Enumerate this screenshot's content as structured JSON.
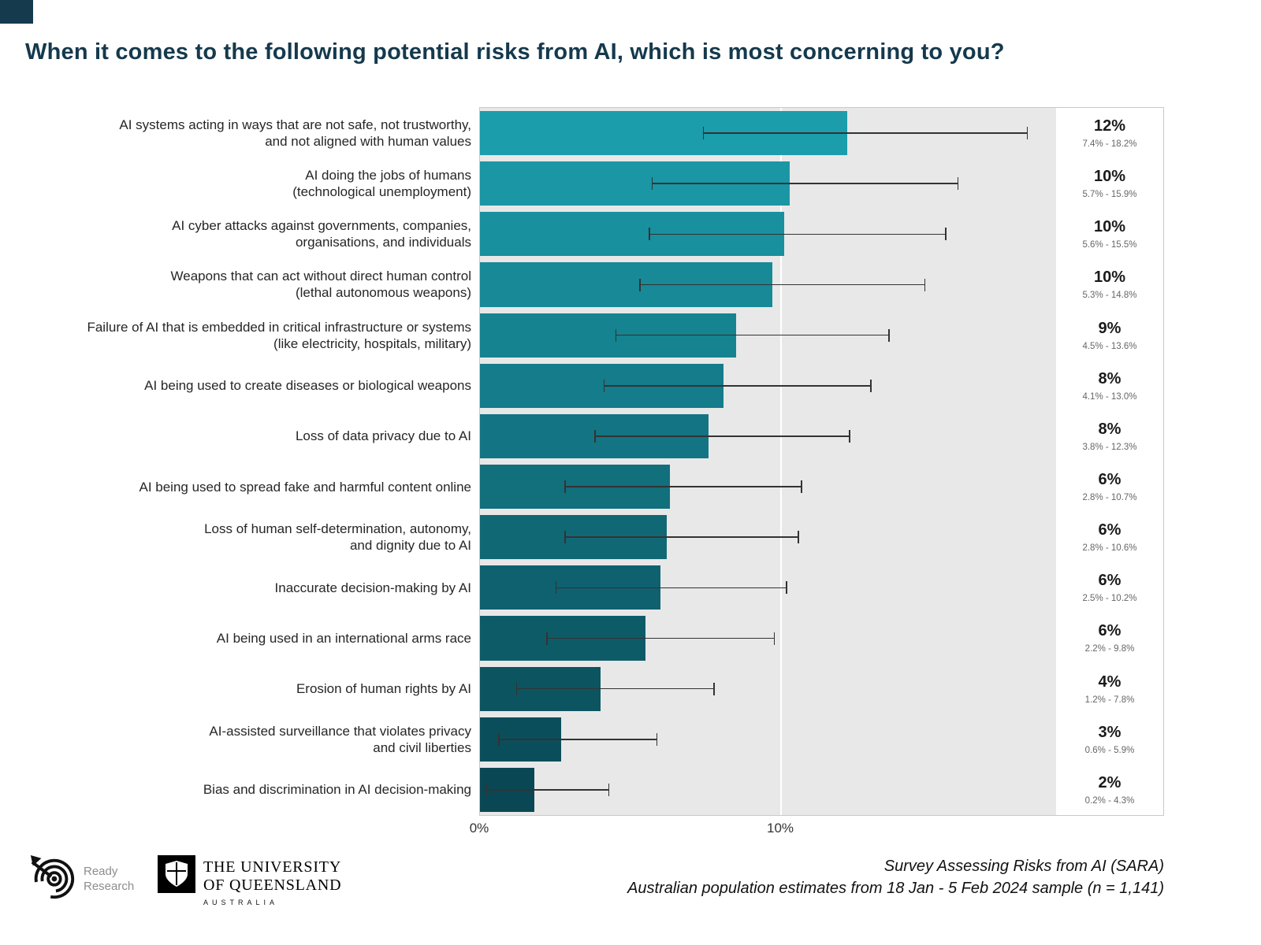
{
  "chart_data": {
    "type": "bar",
    "orientation": "horizontal",
    "title": "When it comes to the following potential risks from AI, which is most concerning to you?",
    "xlabel": "",
    "ylabel": "",
    "xlim": [
      0,
      19.1
    ],
    "x_ticks": [
      "0%",
      "10%"
    ],
    "x_tick_pcts": [
      0,
      10
    ],
    "grid": "white vertical gridline at 10%",
    "plot_background": "#e8e8e8",
    "rows": [
      {
        "label": "AI systems acting in ways that are not safe, not trustworthy,\nand not aligned with human values",
        "value": 12.2,
        "display": "12%",
        "ci_text": "7.4% - 18.2%",
        "ci_low": 7.4,
        "ci_high": 18.2,
        "color": "#1B9DAB"
      },
      {
        "label": "AI doing the jobs of humans\n(technological unemployment)",
        "value": 10.3,
        "display": "10%",
        "ci_text": "5.7% - 15.9%",
        "ci_low": 5.7,
        "ci_high": 15.9,
        "color": "#1A96A4"
      },
      {
        "label": "AI cyber attacks against governments, companies,\norganisations, and individuals",
        "value": 10.1,
        "display": "10%",
        "ci_text": "5.6% - 15.5%",
        "ci_low": 5.6,
        "ci_high": 15.5,
        "color": "#18909E"
      },
      {
        "label": "Weapons that can act without direct human control\n(lethal autonomous weapons)",
        "value": 9.7,
        "display": "10%",
        "ci_text": "5.3% - 14.8%",
        "ci_low": 5.3,
        "ci_high": 14.8,
        "color": "#178997"
      },
      {
        "label": "Failure of AI that is embedded in critical infrastructure or systems\n(like electricity, hospitals, military)",
        "value": 8.5,
        "display": "9%",
        "ci_text": "4.5% - 13.6%",
        "ci_low": 4.5,
        "ci_high": 13.6,
        "color": "#168390"
      },
      {
        "label": "AI being used to create diseases or biological weapons",
        "value": 8.1,
        "display": "8%",
        "ci_text": "4.1% - 13.0%",
        "ci_low": 4.1,
        "ci_high": 13.0,
        "color": "#147C8A"
      },
      {
        "label": "Loss of data privacy due to AI",
        "value": 7.6,
        "display": "8%",
        "ci_text": "3.8% - 12.3%",
        "ci_low": 3.8,
        "ci_high": 12.3,
        "color": "#137583"
      },
      {
        "label": "AI being used to spread fake and harmful content online",
        "value": 6.3,
        "display": "6%",
        "ci_text": "2.8% - 10.7%",
        "ci_low": 2.8,
        "ci_high": 10.7,
        "color": "#126F7C"
      },
      {
        "label": "Loss of human self-determination, autonomy,\nand dignity due to AI",
        "value": 6.2,
        "display": "6%",
        "ci_text": "2.8% - 10.6%",
        "ci_low": 2.8,
        "ci_high": 10.6,
        "color": "#116875"
      },
      {
        "label": "Inaccurate decision-making by AI",
        "value": 6.0,
        "display": "6%",
        "ci_text": "2.5% - 10.2%",
        "ci_low": 2.5,
        "ci_high": 10.2,
        "color": "#0F616F"
      },
      {
        "label": "AI being used in an international arms race",
        "value": 5.5,
        "display": "6%",
        "ci_text": "2.2% - 9.8%",
        "ci_low": 2.2,
        "ci_high": 9.8,
        "color": "#0E5B68"
      },
      {
        "label": "Erosion of human rights by AI",
        "value": 4.0,
        "display": "4%",
        "ci_text": "1.2% - 7.8%",
        "ci_low": 1.2,
        "ci_high": 7.8,
        "color": "#0D5461"
      },
      {
        "label": "AI-assisted surveillance that violates privacy\nand civil liberties",
        "value": 2.7,
        "display": "3%",
        "ci_text": "0.6% - 5.9%",
        "ci_low": 0.6,
        "ci_high": 5.9,
        "color": "#0B4E5B"
      },
      {
        "label": "Bias and discrimination in AI decision-making",
        "value": 1.8,
        "display": "2%",
        "ci_text": "0.2% - 4.3%",
        "ci_low": 0.2,
        "ci_high": 4.3,
        "color": "#0A4754"
      }
    ]
  },
  "colors": {
    "title": "#15394d",
    "corner_accent": "#15394d",
    "plot_background": "#e8e8e8",
    "error_bar": "#333333"
  },
  "footer": {
    "ready_research": {
      "line1": "Ready",
      "line2": "Research"
    },
    "uq": {
      "line1": "THE UNIVERSITY",
      "line2": "OF QUEENSLAND",
      "line3": "AUSTRALIA"
    },
    "source_line1": "Survey Assessing Risks from AI (SARA)",
    "source_line2": "Australian population estimates from 18 Jan - 5 Feb 2024 sample (n = 1,141)"
  }
}
